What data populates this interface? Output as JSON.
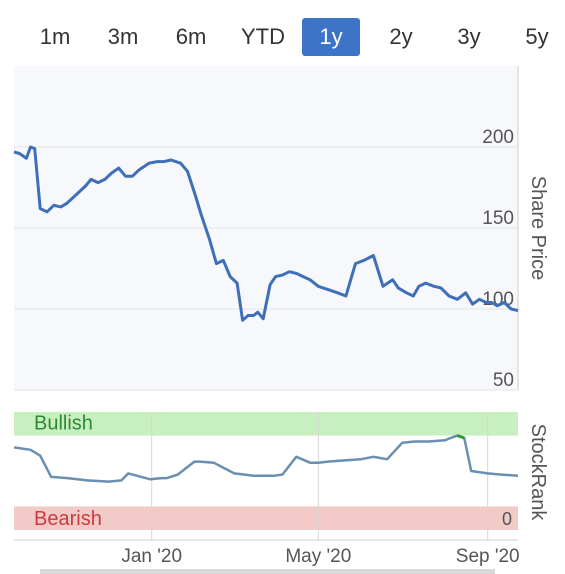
{
  "tabs": [
    {
      "label": "1m",
      "active": false
    },
    {
      "label": "3m",
      "active": false
    },
    {
      "label": "6m",
      "active": false
    },
    {
      "label": "YTD",
      "active": false
    },
    {
      "label": "1y",
      "active": true
    },
    {
      "label": "2y",
      "active": false
    },
    {
      "label": "3y",
      "active": false
    },
    {
      "label": "5y",
      "active": false
    }
  ],
  "colors": {
    "accent": "#3e74c8",
    "price_line": "#3e6fb8",
    "rank_line": "#6a8fb0",
    "rank_highlight": "#2e9a3a",
    "bullish_band": "#c8efc0",
    "bearish_band": "#f2cbc8",
    "bullish_text": "#2e8a34",
    "bearish_text": "#cc3b3b"
  },
  "chart_data": [
    {
      "type": "line",
      "name": "share-price",
      "ylabel": "Share Price",
      "yticks": [
        50,
        100,
        150,
        200
      ],
      "ylim": [
        50,
        250
      ],
      "xlim": [
        "2019-09-23",
        "2020-09-23"
      ],
      "grid": true,
      "x": [
        "2019-09-23",
        "2019-09-27",
        "2019-10-02",
        "2019-10-05",
        "2019-10-08",
        "2019-10-12",
        "2019-10-17",
        "2019-10-22",
        "2019-10-27",
        "2019-10-31",
        "2019-11-04",
        "2019-11-09",
        "2019-11-14",
        "2019-11-18",
        "2019-11-23",
        "2019-11-28",
        "2019-12-03",
        "2019-12-08",
        "2019-12-13",
        "2019-12-18",
        "2019-12-23",
        "2019-12-30",
        "2020-01-05",
        "2020-01-10",
        "2020-01-15",
        "2020-01-22",
        "2020-01-27",
        "2020-02-01",
        "2020-02-06",
        "2020-02-12",
        "2020-02-17",
        "2020-02-22",
        "2020-02-27",
        "2020-03-03",
        "2020-03-07",
        "2020-03-11",
        "2020-03-15",
        "2020-03-18",
        "2020-03-22",
        "2020-03-27",
        "2020-03-31",
        "2020-04-05",
        "2020-04-10",
        "2020-04-15",
        "2020-04-20",
        "2020-04-25",
        "2020-05-01",
        "2020-05-08",
        "2020-05-15",
        "2020-05-21",
        "2020-05-28",
        "2020-06-03",
        "2020-06-10",
        "2020-06-17",
        "2020-06-24",
        "2020-06-28",
        "2020-07-04",
        "2020-07-09",
        "2020-07-13",
        "2020-07-18",
        "2020-07-24",
        "2020-07-29",
        "2020-08-04",
        "2020-08-10",
        "2020-08-16",
        "2020-08-21",
        "2020-08-26",
        "2020-08-31",
        "2020-09-04",
        "2020-09-08",
        "2020-09-13",
        "2020-09-18",
        "2020-09-23"
      ],
      "y": [
        197,
        196,
        193,
        200,
        199,
        162,
        160,
        164,
        163,
        165,
        168,
        172,
        176,
        180,
        178,
        180,
        184,
        187,
        182,
        182,
        186,
        190,
        191,
        191,
        192,
        190,
        185,
        172,
        158,
        143,
        128,
        130,
        120,
        116,
        93,
        96,
        96,
        98,
        94,
        115,
        120,
        121,
        123,
        122,
        120,
        118,
        114,
        112,
        110,
        108,
        128,
        130,
        133,
        114,
        118,
        113,
        110,
        108,
        114,
        116,
        114,
        113,
        108,
        106,
        110,
        103,
        106,
        104,
        104,
        102,
        104,
        100,
        99
      ]
    },
    {
      "type": "line",
      "name": "stockrank",
      "ylabel": "StockRank",
      "yticks": [
        0
      ],
      "ylim": [
        0,
        100
      ],
      "bands": [
        {
          "label": "Bullish",
          "from": 80,
          "to": 100
        },
        {
          "label": "Bearish",
          "from": 0,
          "to": 20
        }
      ],
      "x": [
        "2019-09-23",
        "2019-10-05",
        "2019-10-12",
        "2019-10-20",
        "2019-11-01",
        "2019-11-15",
        "2019-12-01",
        "2019-12-10",
        "2019-12-15",
        "2019-12-31",
        "2020-01-08",
        "2020-01-12",
        "2020-01-20",
        "2020-02-01",
        "2020-02-05",
        "2020-02-15",
        "2020-03-01",
        "2020-03-15",
        "2020-03-30",
        "2020-04-05",
        "2020-04-15",
        "2020-04-25",
        "2020-05-01",
        "2020-05-08",
        "2020-05-20",
        "2020-06-01",
        "2020-06-10",
        "2020-06-20",
        "2020-07-01",
        "2020-07-10",
        "2020-07-20",
        "2020-08-01",
        "2020-08-05",
        "2020-08-10",
        "2020-08-15",
        "2020-08-20",
        "2020-09-01",
        "2020-09-10",
        "2020-09-23"
      ],
      "y": [
        70,
        68,
        63,
        45,
        44,
        42,
        41,
        42,
        48,
        43,
        44,
        44,
        47,
        58,
        58,
        57,
        48,
        46,
        46,
        47,
        62,
        57,
        57,
        58,
        59,
        60,
        62,
        60,
        74,
        75,
        75,
        76,
        78,
        80,
        78,
        50,
        48,
        47,
        46
      ],
      "highlight_range": [
        "2020-08-08",
        "2020-08-16"
      ]
    }
  ],
  "x_axis": {
    "ticks": [
      {
        "label": "Jan '20",
        "date": "2020-01-01"
      },
      {
        "label": "May '20",
        "date": "2020-05-01"
      },
      {
        "label": "Sep '20",
        "date": "2020-09-01"
      }
    ]
  },
  "labels": {
    "price_axis": "Share Price",
    "rank_axis": "StockRank",
    "bullish": "Bullish",
    "bearish": "Bearish",
    "rank_zero": "0"
  }
}
